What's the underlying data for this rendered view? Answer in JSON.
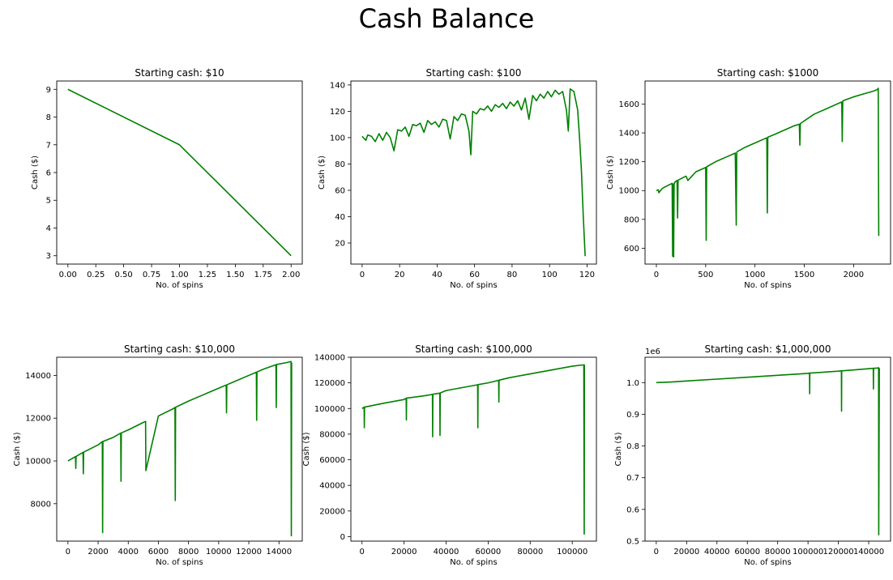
{
  "figure": {
    "title": "Cash Balance"
  },
  "colors": {
    "line": "#008000",
    "axis": "#000000"
  },
  "chart_data": [
    {
      "type": "line",
      "title": "Starting cash: $10",
      "xlabel": "No. of spins",
      "ylabel": "Cash ($)",
      "xlim": [
        -0.1,
        2.1
      ],
      "ylim": [
        2.7,
        9.3
      ],
      "xticks": [
        0,
        0.25,
        0.5,
        0.75,
        1.0,
        1.25,
        1.5,
        1.75,
        2.0
      ],
      "xtick_labels": [
        "0.00",
        "0.25",
        "0.50",
        "0.75",
        "1.00",
        "1.25",
        "1.50",
        "1.75",
        "2.00"
      ],
      "yticks": [
        3,
        4,
        5,
        6,
        7,
        8,
        9
      ],
      "ytick_labels": [
        "3",
        "4",
        "5",
        "6",
        "7",
        "8",
        "9"
      ],
      "series": [
        {
          "x": [
            0,
            1,
            2
          ],
          "y": [
            9,
            7,
            3
          ]
        }
      ]
    },
    {
      "type": "line",
      "title": "Starting cash: $100",
      "xlabel": "No. of spins",
      "ylabel": "Cash ($)",
      "xlim": [
        -6,
        125
      ],
      "ylim": [
        4,
        143
      ],
      "xticks": [
        0,
        20,
        40,
        60,
        80,
        100,
        120
      ],
      "xtick_labels": [
        "0",
        "20",
        "40",
        "60",
        "80",
        "100",
        "120"
      ],
      "yticks": [
        20,
        40,
        60,
        80,
        100,
        120,
        140
      ],
      "ytick_labels": [
        "20",
        "40",
        "60",
        "80",
        "100",
        "120",
        "140"
      ],
      "series": [
        {
          "x": [
            0,
            2,
            3,
            5,
            7,
            9,
            11,
            13,
            15,
            17,
            19,
            21,
            23,
            25,
            27,
            29,
            31,
            33,
            35,
            37,
            39,
            41,
            43,
            45,
            47,
            49,
            51,
            53,
            55,
            57,
            58,
            59,
            61,
            63,
            65,
            67,
            69,
            71,
            73,
            75,
            77,
            79,
            81,
            83,
            85,
            87,
            89,
            91,
            93,
            95,
            97,
            99,
            101,
            103,
            105,
            107,
            109,
            110,
            111,
            113,
            115,
            116,
            117,
            118,
            119
          ],
          "y": [
            101,
            98,
            102,
            101,
            97,
            103,
            98,
            104,
            100,
            90,
            106,
            105,
            108,
            101,
            110,
            109,
            111,
            104,
            113,
            110,
            112,
            108,
            114,
            113,
            99,
            116,
            113,
            118,
            117,
            105,
            87,
            120,
            118,
            122,
            121,
            124,
            120,
            125,
            123,
            126,
            122,
            127,
            124,
            128,
            121,
            130,
            114,
            132,
            128,
            133,
            130,
            135,
            131,
            136,
            133,
            135,
            121,
            105,
            137,
            135,
            121,
            100,
            75,
            40,
            10
          ]
        }
      ]
    },
    {
      "type": "line",
      "title": "Starting cash: $1000",
      "xlabel": "No. of spins",
      "ylabel": "Cash ($)",
      "xlim": [
        -115,
        2375
      ],
      "ylim": [
        490,
        1760
      ],
      "xticks": [
        0,
        500,
        1000,
        1500,
        2000
      ],
      "xtick_labels": [
        "0",
        "500",
        "1000",
        "1500",
        "2000"
      ],
      "yticks": [
        600,
        800,
        1000,
        1200,
        1400,
        1600
      ],
      "ytick_labels": [
        "600",
        "800",
        "1000",
        "1200",
        "1400",
        "1600"
      ],
      "series": [
        {
          "x": [
            0,
            20,
            25,
            60,
            100,
            160,
            165,
            170,
            175,
            180,
            190,
            210,
            215,
            220,
            300,
            320,
            400,
            500,
            505,
            510,
            600,
            700,
            800,
            810,
            815,
            820,
            900,
            1000,
            1100,
            1120,
            1125,
            1130,
            1200,
            1300,
            1400,
            1450,
            1455,
            1460,
            1600,
            1700,
            1880,
            1885,
            1890,
            1900,
            2000,
            2100,
            2200,
            2240,
            2250,
            2255
          ],
          "y": [
            1000,
            1005,
            985,
            1015,
            1030,
            1050,
            545,
            1045,
            540,
            1048,
            1060,
            1070,
            810,
            1072,
            1100,
            1070,
            1130,
            1160,
            655,
            1165,
            1200,
            1230,
            1260,
            760,
            1262,
            1270,
            1300,
            1330,
            1360,
            1365,
            845,
            1370,
            1390,
            1420,
            1450,
            1460,
            1315,
            1465,
            1530,
            1560,
            1615,
            1340,
            1620,
            1625,
            1650,
            1670,
            1690,
            1700,
            1710,
            685
          ]
        }
      ]
    },
    {
      "type": "line",
      "title": "Starting cash: $10,000",
      "xlabel": "No. of spins",
      "ylabel": "Cash ($)",
      "xlim": [
        -745,
        15545
      ],
      "ylim": [
        6250,
        14850
      ],
      "xticks": [
        0,
        2000,
        4000,
        6000,
        8000,
        10000,
        12000,
        14000
      ],
      "xtick_labels": [
        "0",
        "2000",
        "4000",
        "6000",
        "8000",
        "10000",
        "12000",
        "14000"
      ],
      "yticks": [
        8000,
        10000,
        12000,
        14000
      ],
      "ytick_labels": [
        "8000",
        "10000",
        "12000",
        "14000"
      ],
      "series": [
        {
          "x": [
            0,
            500,
            520,
            540,
            1000,
            1020,
            1040,
            2000,
            2280,
            2300,
            2320,
            3000,
            3500,
            3520,
            3540,
            4000,
            5000,
            5150,
            5170,
            6000,
            7000,
            7100,
            7120,
            7140,
            8000,
            9000,
            10000,
            10500,
            10520,
            10540,
            11000,
            12000,
            12500,
            12520,
            12540,
            13000,
            13800,
            13820,
            13840,
            14500,
            14800,
            14820,
            14840
          ],
          "y": [
            10000,
            10200,
            9650,
            10210,
            10400,
            9400,
            10410,
            10750,
            10900,
            6650,
            10910,
            11100,
            11300,
            9050,
            11310,
            11450,
            11800,
            11850,
            9550,
            12100,
            12450,
            12500,
            8150,
            12510,
            12800,
            13100,
            13400,
            13550,
            12250,
            13560,
            13700,
            14000,
            14150,
            11900,
            14160,
            14300,
            14500,
            12500,
            14510,
            14600,
            14650,
            6500,
            14600
          ]
        }
      ]
    },
    {
      "type": "line",
      "title": "Starting cash: $100,000",
      "xlabel": "No. of spins",
      "ylabel": "Cash ($)",
      "xlim": [
        -5300,
        111500
      ],
      "ylim": [
        -3500,
        140000
      ],
      "xticks": [
        0,
        20000,
        40000,
        60000,
        80000,
        100000
      ],
      "xtick_labels": [
        "0",
        "20000",
        "40000",
        "60000",
        "80000",
        "100000"
      ],
      "yticks": [
        0,
        20000,
        40000,
        60000,
        80000,
        100000,
        120000,
        140000
      ],
      "ytick_labels": [
        "0",
        "20000",
        "40000",
        "60000",
        "80000",
        "100000",
        "120000",
        "140000"
      ],
      "series": [
        {
          "x": [
            0,
            1000,
            1100,
            1200,
            10000,
            20000,
            21000,
            21100,
            21200,
            30000,
            33500,
            33600,
            33700,
            37000,
            37100,
            37200,
            40000,
            50000,
            55000,
            55100,
            55200,
            60000,
            65000,
            65100,
            65200,
            70000,
            80000,
            90000,
            100000,
            105000,
            105500,
            105700,
            105800,
            106000
          ],
          "y": [
            100000,
            101000,
            85000,
            101100,
            104000,
            107000,
            108000,
            91000,
            108100,
            110000,
            111000,
            78000,
            111100,
            112000,
            79000,
            112100,
            114000,
            117000,
            118500,
            85000,
            118600,
            120000,
            122000,
            105000,
            122100,
            124000,
            127000,
            130000,
            133000,
            134000,
            134000,
            2000,
            134000,
            134000
          ]
        }
      ]
    },
    {
      "type": "line",
      "title": "Starting cash: $1,000,000",
      "xlabel": "No. of spins",
      "ylabel": "Cash ($)",
      "offset_text": "1e6",
      "xlim": [
        -7400,
        154400
      ],
      "ylim": [
        0.5,
        1.08
      ],
      "xticks": [
        0,
        20000,
        40000,
        60000,
        80000,
        100000,
        120000,
        140000
      ],
      "xtick_labels": [
        "0",
        "20000",
        "40000",
        "60000",
        "80000",
        "100000",
        "120000",
        "140000"
      ],
      "yticks": [
        0.5,
        0.6,
        0.7,
        0.8,
        0.9,
        1.0
      ],
      "ytick_labels": [
        "0.5",
        "0.6",
        "0.7",
        "0.8",
        "0.9",
        "1.0"
      ],
      "series": [
        {
          "x": [
            0,
            10000,
            20000,
            40000,
            60000,
            80000,
            100000,
            101000,
            101100,
            101200,
            120000,
            122000,
            122100,
            122200,
            130000,
            143000,
            143100,
            143200,
            146000,
            146500,
            146600,
            147000
          ],
          "y": [
            1.0,
            1.002,
            1.005,
            1.011,
            1.017,
            1.023,
            1.029,
            1.03,
            0.965,
            1.03,
            1.036,
            1.037,
            0.91,
            1.037,
            1.04,
            1.045,
            0.98,
            1.045,
            1.046,
            1.047,
            0.52,
            1.046
          ]
        }
      ]
    }
  ]
}
